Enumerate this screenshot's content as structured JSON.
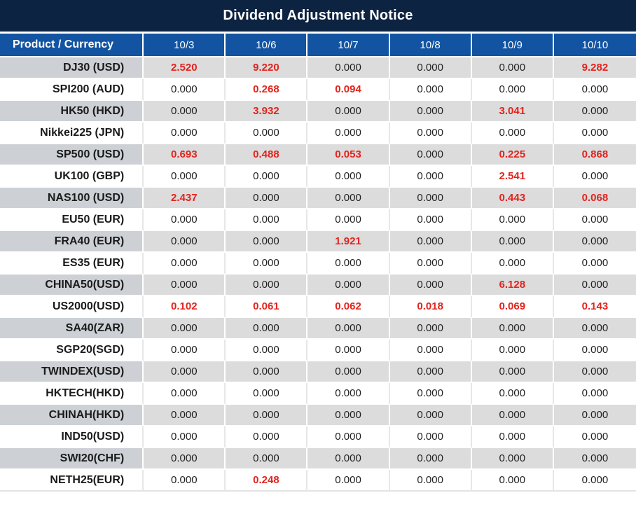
{
  "title": "Dividend Adjustment Notice",
  "colors": {
    "title_bar": "#0D2342",
    "header": "#1254A2",
    "header_text": "#FFFFFF",
    "row_gray_label": "#CDD1D5",
    "row_gray_cell": "#DCDCDC",
    "row_white": "#FFFFFF",
    "value_black": "#1F1F1F",
    "value_red": "#E3231D"
  },
  "table": {
    "header": [
      "Product / Currency",
      "10/3",
      "10/6",
      "10/7",
      "10/8",
      "10/9",
      "10/10"
    ],
    "rows": [
      {
        "product": "DJ30 (USD)",
        "values": [
          "2.520",
          "9.220",
          "0.000",
          "0.000",
          "0.000",
          "9.282"
        ],
        "red": [
          true,
          true,
          false,
          false,
          false,
          true
        ]
      },
      {
        "product": "SPI200 (AUD)",
        "values": [
          "0.000",
          "0.268",
          "0.094",
          "0.000",
          "0.000",
          "0.000"
        ],
        "red": [
          false,
          true,
          true,
          false,
          false,
          false
        ]
      },
      {
        "product": "HK50 (HKD)",
        "values": [
          "0.000",
          "3.932",
          "0.000",
          "0.000",
          "3.041",
          "0.000"
        ],
        "red": [
          false,
          true,
          false,
          false,
          true,
          false
        ]
      },
      {
        "product": "Nikkei225 (JPN)",
        "values": [
          "0.000",
          "0.000",
          "0.000",
          "0.000",
          "0.000",
          "0.000"
        ],
        "red": [
          false,
          false,
          false,
          false,
          false,
          false
        ]
      },
      {
        "product": "SP500 (USD)",
        "values": [
          "0.693",
          "0.488",
          "0.053",
          "0.000",
          "0.225",
          "0.868"
        ],
        "red": [
          true,
          true,
          true,
          false,
          true,
          true
        ]
      },
      {
        "product": "UK100 (GBP)",
        "values": [
          "0.000",
          "0.000",
          "0.000",
          "0.000",
          "2.541",
          "0.000"
        ],
        "red": [
          false,
          false,
          false,
          false,
          true,
          false
        ]
      },
      {
        "product": "NAS100 (USD)",
        "values": [
          "2.437",
          "0.000",
          "0.000",
          "0.000",
          "0.443",
          "0.068"
        ],
        "red": [
          true,
          false,
          false,
          false,
          true,
          true
        ]
      },
      {
        "product": "EU50 (EUR)",
        "values": [
          "0.000",
          "0.000",
          "0.000",
          "0.000",
          "0.000",
          "0.000"
        ],
        "red": [
          false,
          false,
          false,
          false,
          false,
          false
        ]
      },
      {
        "product": "FRA40 (EUR)",
        "values": [
          "0.000",
          "0.000",
          "1.921",
          "0.000",
          "0.000",
          "0.000"
        ],
        "red": [
          false,
          false,
          true,
          false,
          false,
          false
        ]
      },
      {
        "product": "ES35 (EUR)",
        "values": [
          "0.000",
          "0.000",
          "0.000",
          "0.000",
          "0.000",
          "0.000"
        ],
        "red": [
          false,
          false,
          false,
          false,
          false,
          false
        ]
      },
      {
        "product": "CHINA50(USD)",
        "values": [
          "0.000",
          "0.000",
          "0.000",
          "0.000",
          "6.128",
          "0.000"
        ],
        "red": [
          false,
          false,
          false,
          false,
          true,
          false
        ]
      },
      {
        "product": "US2000(USD)",
        "values": [
          "0.102",
          "0.061",
          "0.062",
          "0.018",
          "0.069",
          "0.143"
        ],
        "red": [
          true,
          true,
          true,
          true,
          true,
          true
        ]
      },
      {
        "product": "SA40(ZAR)",
        "values": [
          "0.000",
          "0.000",
          "0.000",
          "0.000",
          "0.000",
          "0.000"
        ],
        "red": [
          false,
          false,
          false,
          false,
          false,
          false
        ]
      },
      {
        "product": "SGP20(SGD)",
        "values": [
          "0.000",
          "0.000",
          "0.000",
          "0.000",
          "0.000",
          "0.000"
        ],
        "red": [
          false,
          false,
          false,
          false,
          false,
          false
        ]
      },
      {
        "product": "TWINDEX(USD)",
        "values": [
          "0.000",
          "0.000",
          "0.000",
          "0.000",
          "0.000",
          "0.000"
        ],
        "red": [
          false,
          false,
          false,
          false,
          false,
          false
        ]
      },
      {
        "product": "HKTECH(HKD)",
        "values": [
          "0.000",
          "0.000",
          "0.000",
          "0.000",
          "0.000",
          "0.000"
        ],
        "red": [
          false,
          false,
          false,
          false,
          false,
          false
        ]
      },
      {
        "product": "CHINAH(HKD)",
        "values": [
          "0.000",
          "0.000",
          "0.000",
          "0.000",
          "0.000",
          "0.000"
        ],
        "red": [
          false,
          false,
          false,
          false,
          false,
          false
        ]
      },
      {
        "product": "IND50(USD)",
        "values": [
          "0.000",
          "0.000",
          "0.000",
          "0.000",
          "0.000",
          "0.000"
        ],
        "red": [
          false,
          false,
          false,
          false,
          false,
          false
        ]
      },
      {
        "product": "SWI20(CHF)",
        "values": [
          "0.000",
          "0.000",
          "0.000",
          "0.000",
          "0.000",
          "0.000"
        ],
        "red": [
          false,
          false,
          false,
          false,
          false,
          false
        ]
      },
      {
        "product": "NETH25(EUR)",
        "values": [
          "0.000",
          "0.248",
          "0.000",
          "0.000",
          "0.000",
          "0.000"
        ],
        "red": [
          false,
          true,
          false,
          false,
          false,
          false
        ]
      }
    ]
  }
}
